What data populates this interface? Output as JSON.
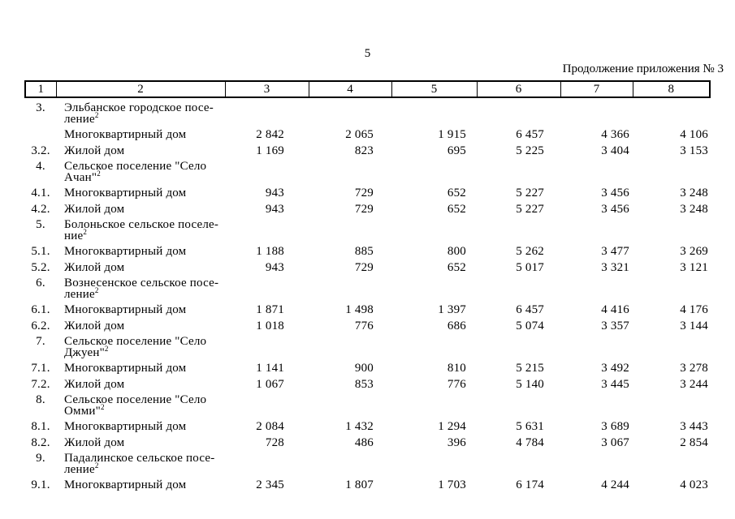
{
  "page": {
    "number": "5",
    "continuation": "Продолжение приложения № 3"
  },
  "table": {
    "header": [
      "1",
      "2",
      "3",
      "4",
      "5",
      "6",
      "7",
      "8"
    ],
    "rows": [
      {
        "num": "3.",
        "lines": [
          "Эльбанское городское посе-",
          "ление"
        ],
        "sup": "2",
        "values": [
          "",
          "",
          "",
          "",
          "",
          ""
        ]
      },
      {
        "num": "",
        "lines": [
          "Многоквартирный дом"
        ],
        "values": [
          "2 842",
          "2 065",
          "1 915",
          "6 457",
          "4 366",
          "4 106"
        ]
      },
      {
        "num": "3.2.",
        "lines": [
          "Жилой дом"
        ],
        "values": [
          "1 169",
          "823",
          "695",
          "5 225",
          "3 404",
          "3 153"
        ]
      },
      {
        "num": "4.",
        "lines": [
          "Сельское поселение \"Село",
          "Ачан\""
        ],
        "sup": "2",
        "values": [
          "",
          "",
          "",
          "",
          "",
          ""
        ]
      },
      {
        "num": "4.1.",
        "lines": [
          "Многоквартирный дом"
        ],
        "values": [
          "943",
          "729",
          "652",
          "5 227",
          "3 456",
          "3 248"
        ]
      },
      {
        "num": "4.2.",
        "lines": [
          "Жилой дом"
        ],
        "values": [
          "943",
          "729",
          "652",
          "5 227",
          "3 456",
          "3 248"
        ]
      },
      {
        "num": "5.",
        "lines": [
          "Болоньское сельское поселе-",
          "ние"
        ],
        "sup": "2",
        "values": [
          "",
          "",
          "",
          "",
          "",
          ""
        ]
      },
      {
        "num": "5.1.",
        "lines": [
          "Многоквартирный дом"
        ],
        "values": [
          "1 188",
          "885",
          "800",
          "5 262",
          "3 477",
          "3 269"
        ]
      },
      {
        "num": "5.2.",
        "lines": [
          "Жилой дом"
        ],
        "values": [
          "943",
          "729",
          "652",
          "5 017",
          "3 321",
          "3 121"
        ]
      },
      {
        "num": "6.",
        "lines": [
          "Вознесенское сельское посе-",
          "ление"
        ],
        "sup": "2",
        "values": [
          "",
          "",
          "",
          "",
          "",
          ""
        ]
      },
      {
        "num": "6.1.",
        "lines": [
          "Многоквартирный дом"
        ],
        "values": [
          "1 871",
          "1 498",
          "1 397",
          "6 457",
          "4 416",
          "4 176"
        ]
      },
      {
        "num": "6.2.",
        "lines": [
          "Жилой дом"
        ],
        "values": [
          "1 018",
          "776",
          "686",
          "5 074",
          "3 357",
          "3 144"
        ]
      },
      {
        "num": "7.",
        "lines": [
          "Сельское поселение \"Село",
          "Джуен\""
        ],
        "sup": "2",
        "values": [
          "",
          "",
          "",
          "",
          "",
          ""
        ]
      },
      {
        "num": "7.1.",
        "lines": [
          "Многоквартирный дом"
        ],
        "values": [
          "1 141",
          "900",
          "810",
          "5 215",
          "3 492",
          "3 278"
        ]
      },
      {
        "num": "7.2.",
        "lines": [
          "Жилой дом"
        ],
        "values": [
          "1 067",
          "853",
          "776",
          "5 140",
          "3 445",
          "3 244"
        ]
      },
      {
        "num": "8.",
        "lines": [
          "Сельское поселение \"Село",
          "Омми\""
        ],
        "sup": "2",
        "values": [
          "",
          "",
          "",
          "",
          "",
          ""
        ]
      },
      {
        "num": "8.1.",
        "lines": [
          "Многоквартирный дом"
        ],
        "values": [
          "2 084",
          "1 432",
          "1 294",
          "5 631",
          "3 689",
          "3 443"
        ]
      },
      {
        "num": "8.2.",
        "lines": [
          "Жилой дом"
        ],
        "values": [
          "728",
          "486",
          "396",
          "4 784",
          "3 067",
          "2 854"
        ]
      },
      {
        "num": "9.",
        "lines": [
          "Падалинское сельское посе-",
          "ление"
        ],
        "sup": "2",
        "values": [
          "",
          "",
          "",
          "",
          "",
          ""
        ]
      },
      {
        "num": "9.1.",
        "lines": [
          "Многоквартирный дом"
        ],
        "values": [
          "2 345",
          "1 807",
          "1 703",
          "6 174",
          "4 244",
          "4 023"
        ]
      }
    ]
  }
}
